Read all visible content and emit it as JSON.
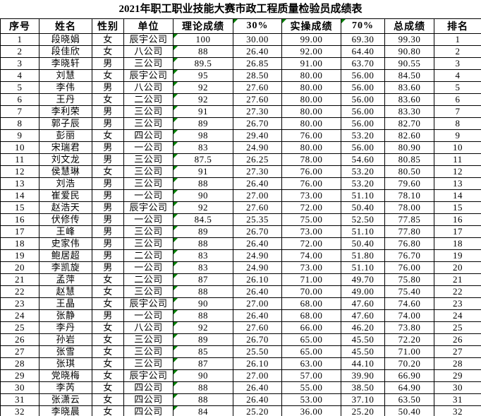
{
  "title": "2021年职工职业技能大赛市政工程质量检验员成绩表",
  "colors": {
    "error_indicator": "#008000",
    "border": "#000000",
    "background": "#ffffff",
    "text": "#000000"
  },
  "table": {
    "headers": [
      "序号",
      "姓名",
      "性别",
      "单位",
      "理论成绩",
      "30%",
      "实操成绩",
      "70%",
      "总成绩",
      "排名"
    ],
    "header_error_indicator_columns": [
      5,
      6,
      7
    ],
    "row_error_indicator_column": 4,
    "rows": [
      [
        "1",
        "段晓娟",
        "女",
        "辰宇公司",
        "100",
        "30.00",
        "99.00",
        "69.30",
        "99.30",
        "1"
      ],
      [
        "2",
        "段佳欣",
        "女",
        "八公司",
        "88",
        "26.40",
        "92.00",
        "64.40",
        "90.80",
        "2"
      ],
      [
        "3",
        "李晓轩",
        "男",
        "三公司",
        "89.5",
        "26.85",
        "91.00",
        "63.70",
        "90.55",
        "3"
      ],
      [
        "4",
        "刘慧",
        "女",
        "辰宇公司",
        "95",
        "28.50",
        "80.00",
        "56.00",
        "84.50",
        "4"
      ],
      [
        "5",
        "李伟",
        "男",
        "八公司",
        "92",
        "27.60",
        "80.00",
        "56.00",
        "83.60",
        "5"
      ],
      [
        "6",
        "王丹",
        "女",
        "二公司",
        "92",
        "27.60",
        "80.00",
        "56.00",
        "83.60",
        "6"
      ],
      [
        "7",
        "李利荣",
        "男",
        "三公司",
        "91",
        "27.30",
        "80.00",
        "56.00",
        "83.30",
        "7"
      ],
      [
        "8",
        "郭子辰",
        "男",
        "三公司",
        "89",
        "26.70",
        "80.00",
        "56.00",
        "82.70",
        "8"
      ],
      [
        "9",
        "彭丽",
        "女",
        "四公司",
        "98",
        "29.40",
        "76.00",
        "53.20",
        "82.60",
        "9"
      ],
      [
        "10",
        "宋瑞君",
        "男",
        "一公司",
        "83",
        "24.90",
        "80.00",
        "56.00",
        "80.90",
        "10"
      ],
      [
        "11",
        "刘文龙",
        "男",
        "三公司",
        "87.5",
        "26.25",
        "78.00",
        "54.60",
        "80.85",
        "11"
      ],
      [
        "12",
        "侯慧琳",
        "女",
        "三公司",
        "91",
        "27.30",
        "76.00",
        "53.20",
        "80.50",
        "12"
      ],
      [
        "13",
        "刘浩",
        "男",
        "三公司",
        "88",
        "26.40",
        "76.00",
        "53.20",
        "79.60",
        "13"
      ],
      [
        "14",
        "崔爱民",
        "男",
        "一公司",
        "90",
        "27.00",
        "73.00",
        "51.10",
        "78.10",
        "14"
      ],
      [
        "15",
        "赵浩天",
        "男",
        "辰宇公司",
        "92",
        "27.60",
        "72.00",
        "50.40",
        "78.00",
        "15"
      ],
      [
        "16",
        "伏修传",
        "男",
        "一公司",
        "84.5",
        "25.35",
        "75.00",
        "52.50",
        "77.85",
        "16"
      ],
      [
        "17",
        "王峰",
        "男",
        "三公司",
        "89",
        "26.70",
        "73.00",
        "51.10",
        "77.80",
        "17"
      ],
      [
        "18",
        "史家伟",
        "男",
        "三公司",
        "88",
        "26.40",
        "72.00",
        "50.40",
        "76.80",
        "18"
      ],
      [
        "19",
        "鲍居超",
        "男",
        "二公司",
        "83",
        "24.90",
        "74.00",
        "51.80",
        "76.70",
        "19"
      ],
      [
        "20",
        "李凯旋",
        "男",
        "一公司",
        "83",
        "24.90",
        "73.00",
        "51.10",
        "76.00",
        "20"
      ],
      [
        "21",
        "孟萍",
        "女",
        "二公司",
        "87",
        "26.10",
        "71.00",
        "49.70",
        "75.80",
        "21"
      ],
      [
        "22",
        "赵慧",
        "女",
        "三公司",
        "88",
        "26.40",
        "70.00",
        "49.00",
        "75.40",
        "22"
      ],
      [
        "23",
        "王晶",
        "女",
        "辰宇公司",
        "90",
        "27.00",
        "68.00",
        "47.60",
        "74.60",
        "23"
      ],
      [
        "24",
        "张静",
        "男",
        "一公司",
        "88",
        "26.40",
        "68.00",
        "47.60",
        "74.00",
        "24"
      ],
      [
        "25",
        "李丹",
        "女",
        "八公司",
        "92",
        "27.60",
        "66.00",
        "46.20",
        "73.80",
        "25"
      ],
      [
        "26",
        "孙岩",
        "女",
        "三公司",
        "89",
        "26.70",
        "65.00",
        "45.50",
        "72.20",
        "26"
      ],
      [
        "27",
        "张雪",
        "女",
        "三公司",
        "85",
        "25.50",
        "65.00",
        "45.50",
        "71.00",
        "27"
      ],
      [
        "28",
        "张琪",
        "女",
        "三公司",
        "87",
        "26.10",
        "63.00",
        "44.10",
        "70.20",
        "28"
      ],
      [
        "29",
        "党晓梅",
        "女",
        "辰宇公司",
        "90",
        "27.00",
        "57.00",
        "39.90",
        "66.90",
        "29"
      ],
      [
        "30",
        "李芮",
        "女",
        "四公司",
        "88",
        "26.40",
        "55.00",
        "38.50",
        "64.90",
        "30"
      ],
      [
        "31",
        "张潇云",
        "女",
        "四公司",
        "88",
        "26.40",
        "53.00",
        "37.10",
        "63.50",
        "31"
      ],
      [
        "32",
        "李晓晨",
        "女",
        "四公司",
        "84",
        "25.20",
        "36.00",
        "25.20",
        "50.40",
        "32"
      ]
    ]
  }
}
